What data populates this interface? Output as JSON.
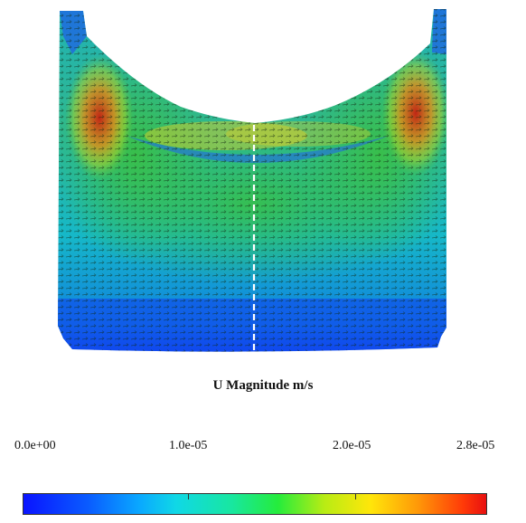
{
  "figure": {
    "colorbar_title": "U Magnitude m/s",
    "tick_labels": [
      "0.0e+00",
      "1.0e-05",
      "2.0e-05",
      "2.8e-05"
    ],
    "colorbar_min": 0,
    "colorbar_max": 2.8e-05,
    "colormap": [
      "#0a14ff",
      "#0aa8ff",
      "#18e7a0",
      "#25ec3c",
      "#ffe60a",
      "#ff3a08",
      "#e81010"
    ]
  }
}
